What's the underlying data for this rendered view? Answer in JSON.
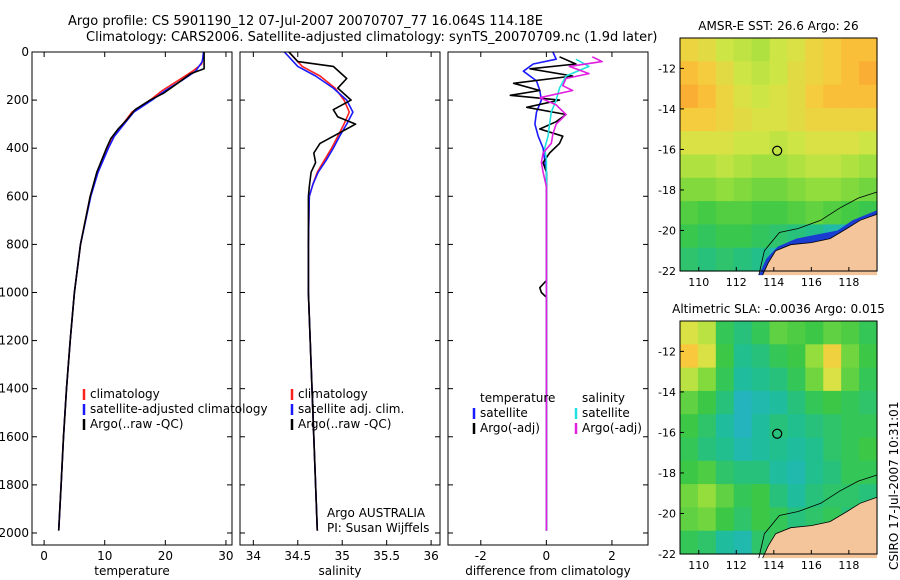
{
  "chart_data": {
    "type": "line",
    "title_line1": "Argo profile: CS 5901190_12 07-Jul-2007 20070707_77 16.064S 114.18E",
    "title_line2": "Climatology: CARS2006. Satellite-adjusted climatology: synTS_20070709.nc (1.9d later)",
    "footer": "CSIRO 17-Jul-2007 10:31:01",
    "colors": {
      "climatology": "#ff2020",
      "satellite": "#1a1aff",
      "argo": "#000000",
      "sal_satellite": "#20e0e0",
      "sal_argo": "#e020e0",
      "land": "#f4c59a"
    },
    "ylim": [
      0,
      2050
    ],
    "yticks": [
      0,
      200,
      400,
      600,
      800,
      1000,
      1200,
      1400,
      1600,
      1800,
      2000
    ],
    "panels": [
      {
        "id": "temperature",
        "xlabel": "temperature",
        "xlim": [
          -2,
          31
        ],
        "xticks": [
          0,
          10,
          20,
          30
        ],
        "legend": [
          {
            "label": "climatology",
            "color": "#ff2020"
          },
          {
            "label": "satellite-adjusted climatology",
            "color": "#1a1aff"
          },
          {
            "label": "Argo(..raw -QC)",
            "color": "#000000"
          }
        ],
        "series": [
          {
            "name": "climatology",
            "color": "#ff2020",
            "depth": [
              0,
              50,
              80,
              120,
              160,
              200,
              250,
              300,
              350,
              400,
              500,
              600,
              800,
              1000,
              1200,
              1400,
              1600,
              1800,
              1990
            ],
            "x": [
              26.4,
              26.0,
              24.5,
              22.0,
              19.5,
              17.5,
              14.5,
              13.0,
              11.5,
              10.5,
              8.8,
              7.6,
              6.0,
              5.0,
              4.3,
              3.7,
              3.2,
              2.8,
              2.4
            ]
          },
          {
            "name": "satellite-adjusted climatology",
            "color": "#1a1aff",
            "depth": [
              0,
              40,
              80,
              120,
              160,
              200,
              250,
              300,
              350,
              400,
              500,
              600,
              800,
              1000,
              1200,
              1400,
              1600,
              1800,
              1990
            ],
            "x": [
              26.3,
              26.1,
              25.0,
              22.6,
              20.0,
              17.8,
              14.8,
              13.2,
              11.6,
              10.6,
              8.9,
              7.7,
              6.0,
              5.0,
              4.3,
              3.7,
              3.2,
              2.8,
              2.4
            ]
          },
          {
            "name": "Argo",
            "color": "#000000",
            "depth": [
              0,
              70,
              90,
              130,
              170,
              200,
              240,
              280,
              320,
              360,
              400,
              500,
              600,
              800,
              1000,
              1200,
              1400,
              1600,
              1800,
              1990
            ],
            "x": [
              26.4,
              26.4,
              24.2,
              22.0,
              19.8,
              17.5,
              15.0,
              13.7,
              12.2,
              11.0,
              10.3,
              8.7,
              7.6,
              6.0,
              5.0,
              4.3,
              3.7,
              3.2,
              2.8,
              2.4
            ]
          }
        ]
      },
      {
        "id": "salinity",
        "xlabel": "salinity",
        "xlim": [
          33.85,
          36.1
        ],
        "xticks": [
          34,
          34.5,
          35,
          35.5,
          36
        ],
        "legend": [
          {
            "label": "climatology",
            "color": "#ff2020"
          },
          {
            "label": "satellite adj. clim.",
            "color": "#1a1aff"
          },
          {
            "label": "Argo(..raw -QC)",
            "color": "#000000"
          }
        ],
        "note_line1": "Argo AUSTRALIA",
        "note_line2": "PI: Susan Wijffels",
        "series": [
          {
            "name": "climatology",
            "color": "#ff2020",
            "depth": [
              0,
              60,
              100,
              150,
              200,
              250,
              300,
              350,
              400,
              450,
              500,
              550,
              600,
              800,
              1000,
              1200,
              1400,
              1600,
              1800,
              1990
            ],
            "x": [
              34.4,
              34.55,
              34.75,
              34.92,
              35.02,
              35.08,
              35.02,
              34.95,
              34.88,
              34.8,
              34.72,
              34.67,
              34.63,
              34.62,
              34.62,
              34.64,
              34.66,
              34.68,
              34.7,
              34.72
            ]
          },
          {
            "name": "satellite adj. clim.",
            "color": "#1a1aff",
            "depth": [
              0,
              60,
              100,
              150,
              200,
              250,
              300,
              350,
              400,
              450,
              500,
              550,
              600,
              800,
              1000,
              1200,
              1400,
              1600,
              1800,
              1990
            ],
            "x": [
              34.35,
              34.5,
              34.7,
              34.9,
              35.05,
              35.12,
              35.05,
              34.97,
              34.9,
              34.82,
              34.73,
              34.67,
              34.63,
              34.62,
              34.62,
              34.64,
              34.66,
              34.68,
              34.7,
              34.72
            ]
          },
          {
            "name": "Argo",
            "color": "#000000",
            "depth": [
              0,
              40,
              60,
              110,
              150,
              200,
              240,
              270,
              300,
              340,
              380,
              420,
              460,
              500,
              560,
              600,
              800,
              1000,
              1200,
              1400,
              1600,
              1800,
              1990
            ],
            "x": [
              34.4,
              34.5,
              34.9,
              35.05,
              34.95,
              35.1,
              34.9,
              34.95,
              35.15,
              34.95,
              34.75,
              34.68,
              34.7,
              34.65,
              34.63,
              34.62,
              34.62,
              34.62,
              34.64,
              34.66,
              34.68,
              34.7,
              34.72
            ]
          }
        ]
      },
      {
        "id": "difference",
        "xlabel": "difference from climatology",
        "xlim": [
          -3,
          3.1
        ],
        "xticks": [
          -2,
          0,
          2
        ],
        "legend_left_title": "temperature",
        "legend_right_title": "salinity",
        "legend_left": [
          {
            "label": "satellite",
            "color": "#1a1aff"
          },
          {
            "label": "Argo(-adj)",
            "color": "#000000"
          }
        ],
        "legend_right": [
          {
            "label": "satellite",
            "color": "#20e0e0"
          },
          {
            "label": "Argo(-adj)",
            "color": "#e020e0"
          }
        ],
        "series": [
          {
            "name": "temperature satellite",
            "color": "#1a1aff",
            "depth": [
              0,
              30,
              50,
              80,
              120,
              160,
              200,
              250,
              300,
              350,
              400,
              450,
              500,
              600,
              800,
              1000,
              1200,
              1500,
              1800,
              1990
            ],
            "x": [
              0.2,
              0.3,
              -0.4,
              -0.7,
              -0.3,
              -0.2,
              -0.15,
              -0.3,
              -0.35,
              -0.25,
              -0.1,
              -0.05,
              0.0,
              0.0,
              0.0,
              0.0,
              0.0,
              0.0,
              0.0,
              0.0
            ]
          },
          {
            "name": "temperature Argo",
            "color": "#000000",
            "depth": [
              20,
              50,
              70,
              100,
              130,
              160,
              180,
              200,
              230,
              260,
              290,
              320,
              350,
              380,
              420,
              460,
              500,
              580,
              600,
              800,
              950,
              980,
              1000,
              1020,
              1100,
              1500,
              1990
            ],
            "x": [
              0.4,
              0.9,
              -0.5,
              0.8,
              -1.0,
              -0.2,
              -1.1,
              0.4,
              -0.6,
              0.6,
              0.3,
              -0.2,
              0.5,
              0.4,
              0.1,
              -0.1,
              0.0,
              0.0,
              0.0,
              0.0,
              0.0,
              -0.2,
              -0.15,
              0.0,
              0.0,
              0.0,
              0.0
            ]
          },
          {
            "name": "salinity satellite",
            "color": "#20e0e0",
            "depth": [
              30,
              60,
              100,
              150,
              200,
              250,
              300,
              350,
              400,
              450,
              500,
              600,
              800,
              1000,
              1500,
              1990
            ],
            "x": [
              0.9,
              1.3,
              0.6,
              0.4,
              0.3,
              0.15,
              0.1,
              0.05,
              -0.05,
              0.0,
              0.0,
              0.0,
              0.0,
              0.0,
              0.0,
              0.0
            ]
          },
          {
            "name": "salinity Argo",
            "color": "#e020e0",
            "depth": [
              20,
              40,
              60,
              90,
              110,
              140,
              160,
              190,
              220,
              260,
              300,
              340,
              380,
              420,
              460,
              500,
              560,
              600,
              800,
              1000,
              1500,
              1990
            ],
            "x": [
              1.4,
              1.7,
              0.7,
              1.3,
              0.6,
              0.5,
              0.8,
              -0.2,
              0.3,
              0.6,
              0.3,
              0.2,
              0.15,
              -0.1,
              -0.15,
              -0.1,
              0.0,
              0.0,
              0.0,
              0.0,
              0.0,
              0.0
            ]
          }
        ]
      }
    ],
    "maps": [
      {
        "id": "sst-map",
        "title": "AMSR-E SST: 26.6 Argo: 26",
        "xlim": [
          109,
          119.5
        ],
        "ylim": [
          -22,
          -10.5
        ],
        "xticks": [
          110,
          112,
          114,
          116,
          118
        ],
        "yticks": [
          -12,
          -14,
          -16,
          -18,
          -20,
          -22
        ],
        "marker": {
          "lon": 114.18,
          "lat": -16.064
        },
        "field": [
          [
            26.8,
            26.7,
            26.5,
            26.4,
            26.3,
            26.5,
            26.6,
            26.8,
            26.9,
            27.0,
            27.0
          ],
          [
            27.0,
            26.9,
            26.7,
            26.5,
            26.4,
            26.5,
            26.7,
            26.8,
            26.9,
            27.0,
            27.1
          ],
          [
            27.1,
            27.0,
            26.8,
            26.6,
            26.5,
            26.6,
            26.7,
            26.9,
            27.0,
            27.0,
            27.0
          ],
          [
            26.9,
            26.9,
            26.8,
            26.7,
            26.6,
            26.6,
            26.7,
            26.8,
            26.8,
            26.8,
            26.8
          ],
          [
            26.6,
            26.6,
            26.6,
            26.5,
            26.5,
            26.4,
            26.5,
            26.6,
            26.6,
            26.6,
            26.5
          ],
          [
            26.3,
            26.3,
            26.4,
            26.3,
            26.2,
            26.2,
            26.3,
            26.4,
            26.4,
            26.3,
            26.2
          ],
          [
            26.0,
            26.0,
            26.1,
            26.0,
            25.9,
            25.9,
            26.0,
            26.1,
            26.1,
            26.0,
            25.9
          ],
          [
            25.7,
            25.6,
            25.7,
            25.7,
            25.6,
            25.6,
            25.7,
            25.8,
            25.7,
            25.6,
            25.5
          ],
          [
            25.5,
            25.4,
            25.5,
            25.5,
            25.4,
            25.3,
            25.2,
            25.1,
            24.9,
            24.8,
            24.7
          ],
          [
            25.3,
            25.2,
            25.3,
            25.2,
            25.1,
            24.8,
            24.5,
            24.2,
            24.0,
            24.0,
            24.0
          ]
        ],
        "vmin": 23.8,
        "vmax": 27.3
      },
      {
        "id": "sla-map",
        "title": "Altimetric SLA: -0.0036 Argo: 0.015",
        "xlim": [
          109,
          119.5
        ],
        "ylim": [
          -22,
          -10.5
        ],
        "xticks": [
          110,
          112,
          114,
          116,
          118
        ],
        "yticks": [
          -12,
          -14,
          -16,
          -18,
          -20,
          -22
        ],
        "marker": {
          "lon": 114.18,
          "lat": -16.064
        },
        "field": [
          [
            0.12,
            0.1,
            0.02,
            0.0,
            0.02,
            0.05,
            0.04,
            0.03,
            0.05,
            0.04,
            0.02
          ],
          [
            0.15,
            0.12,
            0.03,
            -0.01,
            0.0,
            0.02,
            0.03,
            0.08,
            0.14,
            0.06,
            0.03
          ],
          [
            0.1,
            0.07,
            0.02,
            -0.02,
            -0.01,
            0.0,
            0.02,
            0.06,
            0.12,
            0.05,
            0.02
          ],
          [
            0.05,
            0.03,
            0.0,
            -0.04,
            -0.03,
            -0.02,
            0.0,
            0.02,
            0.03,
            0.02,
            0.01
          ],
          [
            0.03,
            0.01,
            -0.02,
            -0.04,
            -0.02,
            0.0,
            -0.01,
            0.0,
            0.01,
            0.02,
            0.02
          ],
          [
            0.02,
            0.0,
            -0.01,
            -0.03,
            -0.02,
            -0.01,
            -0.02,
            -0.01,
            0.01,
            0.02,
            0.03
          ],
          [
            0.03,
            0.04,
            0.01,
            0.0,
            0.0,
            -0.02,
            -0.03,
            -0.01,
            0.0,
            0.02,
            0.02
          ],
          [
            0.06,
            0.08,
            0.05,
            0.02,
            0.03,
            0.0,
            -0.02,
            0.0,
            0.01,
            0.01,
            0.0
          ],
          [
            0.05,
            0.06,
            0.03,
            0.01,
            0.03,
            0.02,
            0.0,
            0.01,
            0.02,
            0.0,
            -0.01
          ],
          [
            0.02,
            0.01,
            -0.02,
            -0.03,
            0.01,
            0.02,
            0.01,
            0.0,
            0.0,
            -0.01,
            -0.02
          ]
        ],
        "vmin": -0.12,
        "vmax": 0.18
      }
    ]
  }
}
